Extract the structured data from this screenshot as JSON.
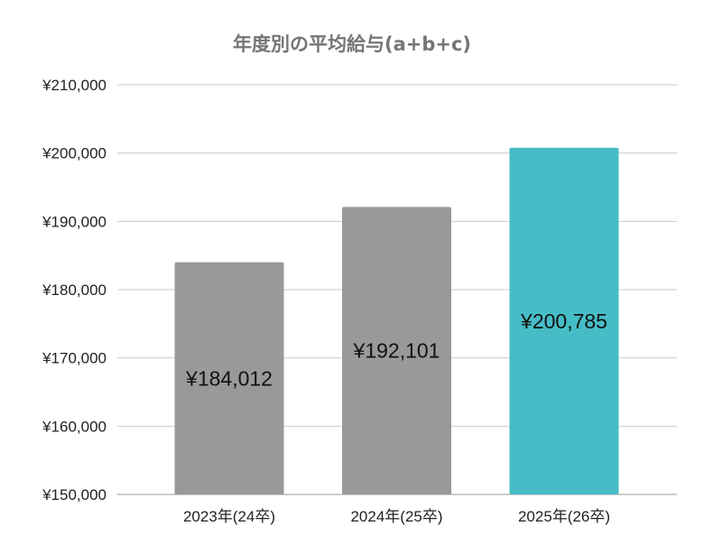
{
  "chart_data": {
    "type": "bar",
    "title": "年度別の平均給与(a+b+c)",
    "xlabel": "",
    "ylabel": "",
    "categories": [
      "2023年(24卒)",
      "2024年(25卒)",
      "2025年(26卒)"
    ],
    "values": [
      184012,
      192101,
      200785
    ],
    "data_labels": [
      "¥184,012",
      "¥192,101",
      "¥200,785"
    ],
    "ylim": [
      150000,
      210000
    ],
    "yticks": [
      150000,
      160000,
      170000,
      180000,
      190000,
      200000,
      210000
    ],
    "ytick_labels": [
      "¥150,000",
      "¥160,000",
      "¥170,000",
      "¥180,000",
      "¥190,000",
      "¥200,000",
      "¥210,000"
    ],
    "grid": true,
    "legend": "none",
    "bar_colors": [
      "#999999",
      "#999999",
      "#46bdc6"
    ]
  }
}
